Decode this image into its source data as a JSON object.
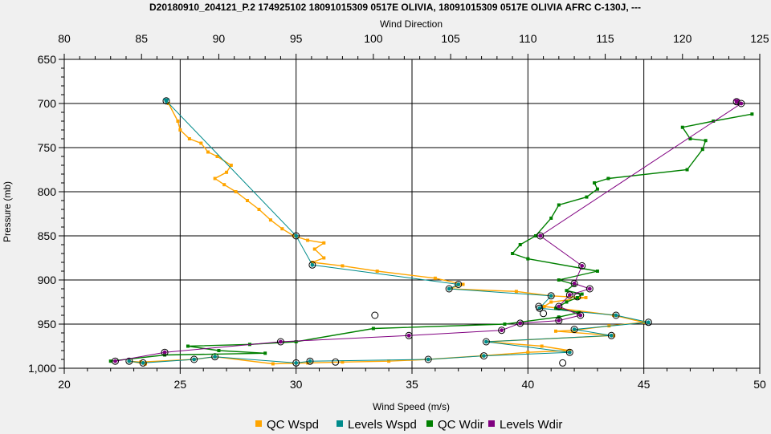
{
  "chart_data": {
    "type": "line",
    "title": "D20180910_204121_P.2 174925102 18091015309 0517E OLIVIA, 18091015309 0517E OLIVIA AFRC C-130J, ---",
    "xlabel_bottom": "Wind Speed (m/s)",
    "xlabel_top": "Wind Direction",
    "ylabel": "Pressure (mb)",
    "x_bottom_range": [
      20,
      50
    ],
    "x_bottom_ticks": [
      "20",
      "25",
      "30",
      "35",
      "40",
      "45",
      "50"
    ],
    "x_top_range": [
      80,
      125
    ],
    "x_top_ticks": [
      "80",
      "85",
      "90",
      "95",
      "100",
      "105",
      "110",
      "115",
      "120",
      "125"
    ],
    "y_range": [
      650,
      1000
    ],
    "y_ticks": [
      "650",
      "700",
      "750",
      "800",
      "850",
      "900",
      "950",
      "1,000"
    ],
    "y_tick_values": [
      650,
      700,
      750,
      800,
      850,
      900,
      950,
      1000
    ],
    "grid": true,
    "legend_position": "bottom",
    "series": [
      {
        "name": "QC Wspd",
        "axis": "bottom",
        "color": "#ffa500",
        "points": [
          [
            24.5,
            700
          ],
          [
            24.9,
            720
          ],
          [
            25.0,
            730
          ],
          [
            25.4,
            740
          ],
          [
            25.9,
            745
          ],
          [
            26.2,
            755
          ],
          [
            26.6,
            760
          ],
          [
            27.2,
            770
          ],
          [
            27.0,
            778
          ],
          [
            26.5,
            785
          ],
          [
            26.9,
            792
          ],
          [
            27.4,
            800
          ],
          [
            27.9,
            810
          ],
          [
            28.4,
            820
          ],
          [
            28.9,
            832
          ],
          [
            29.4,
            842
          ],
          [
            29.9,
            850
          ],
          [
            30.5,
            855
          ],
          [
            31.2,
            858
          ],
          [
            30.8,
            865
          ],
          [
            31.2,
            875
          ],
          [
            30.7,
            880
          ],
          [
            32.0,
            884
          ],
          [
            33.5,
            890
          ],
          [
            36.0,
            898
          ],
          [
            37.2,
            905
          ],
          [
            36.6,
            910
          ],
          [
            39.5,
            913
          ],
          [
            41.0,
            918
          ],
          [
            42.5,
            920
          ],
          [
            41.0,
            925
          ],
          [
            40.7,
            930
          ],
          [
            43.7,
            940
          ],
          [
            45.0,
            948
          ],
          [
            43.5,
            952
          ],
          [
            42.0,
            957
          ],
          [
            41.2,
            958
          ],
          [
            43.7,
            963
          ],
          [
            38.2,
            970
          ],
          [
            40.6,
            975
          ],
          [
            41.8,
            980
          ],
          [
            40.0,
            982
          ],
          [
            38.0,
            986
          ],
          [
            35.7,
            990
          ],
          [
            34.0,
            992
          ],
          [
            32.0,
            993
          ],
          [
            30.5,
            994
          ],
          [
            29.0,
            995
          ],
          [
            26.5,
            987
          ],
          [
            25.6,
            990
          ],
          [
            23.3,
            993
          ],
          [
            22.8,
            992
          ],
          [
            23.5,
            995
          ]
        ]
      },
      {
        "name": "Levels Wspd",
        "axis": "bottom",
        "color": "#008b8b",
        "points": [
          [
            24.4,
            697
          ],
          [
            30.0,
            850
          ],
          [
            30.7,
            883
          ],
          [
            37.0,
            905
          ],
          [
            36.6,
            910
          ],
          [
            41.0,
            918
          ],
          [
            40.5,
            932
          ],
          [
            43.8,
            940
          ],
          [
            45.2,
            948
          ],
          [
            42.0,
            956
          ],
          [
            43.6,
            963
          ],
          [
            38.2,
            970
          ],
          [
            41.8,
            982
          ],
          [
            38.1,
            986
          ],
          [
            35.7,
            990
          ],
          [
            30.6,
            992
          ],
          [
            30.0,
            994
          ],
          [
            26.5,
            987
          ],
          [
            25.6,
            990
          ],
          [
            23.4,
            994
          ],
          [
            22.8,
            992
          ]
        ]
      },
      {
        "name": "QC Wdir",
        "axis": "top",
        "color": "#008000",
        "points": [
          [
            124.5,
            712
          ],
          [
            122.0,
            720
          ],
          [
            120.0,
            727
          ],
          [
            120.5,
            740
          ],
          [
            121.5,
            742
          ],
          [
            121.3,
            752
          ],
          [
            120.3,
            775
          ],
          [
            115.2,
            785
          ],
          [
            114.3,
            790
          ],
          [
            114.5,
            797
          ],
          [
            113.8,
            806
          ],
          [
            112.0,
            815
          ],
          [
            111.5,
            830
          ],
          [
            110.5,
            850
          ],
          [
            109.5,
            860
          ],
          [
            109.0,
            870
          ],
          [
            110.0,
            876
          ],
          [
            114.5,
            890
          ],
          [
            112.0,
            900
          ],
          [
            113.0,
            905
          ],
          [
            112.5,
            912
          ],
          [
            113.5,
            916
          ],
          [
            113.2,
            920
          ],
          [
            112.5,
            925
          ],
          [
            111.8,
            932
          ],
          [
            113.3,
            937
          ],
          [
            112.0,
            942
          ],
          [
            108.5,
            950
          ],
          [
            100.0,
            955
          ],
          [
            95.0,
            970
          ],
          [
            92.0,
            973
          ],
          [
            88.0,
            975
          ],
          [
            90.0,
            980
          ],
          [
            93.0,
            983
          ],
          [
            86.5,
            985
          ],
          [
            83.0,
            992
          ]
        ]
      },
      {
        "name": "Levels Wdir",
        "axis": "top",
        "color": "#800080",
        "points": [
          [
            123.5,
            698
          ],
          [
            123.8,
            700
          ],
          [
            110.8,
            850
          ],
          [
            113.5,
            884
          ],
          [
            113.0,
            904
          ],
          [
            114.0,
            910
          ],
          [
            112.7,
            917
          ],
          [
            112.0,
            930
          ],
          [
            113.4,
            940
          ],
          [
            112.0,
            946
          ],
          [
            109.5,
            949
          ],
          [
            108.3,
            957
          ],
          [
            102.3,
            963
          ],
          [
            94.0,
            970
          ],
          [
            86.5,
            982
          ],
          [
            83.3,
            992
          ]
        ]
      }
    ],
    "extra_markers": [
      {
        "axis": "bottom",
        "x": 33.4,
        "y": 940
      },
      {
        "axis": "bottom",
        "x": 41.5,
        "y": 994
      },
      {
        "axis": "bottom",
        "x": 31.7,
        "y": 993
      },
      {
        "axis": "top",
        "x": 111.0,
        "y": 938
      },
      {
        "axis": "top",
        "x": 113.2,
        "y": 919
      },
      {
        "axis": "top",
        "x": 110.7,
        "y": 930
      }
    ]
  }
}
